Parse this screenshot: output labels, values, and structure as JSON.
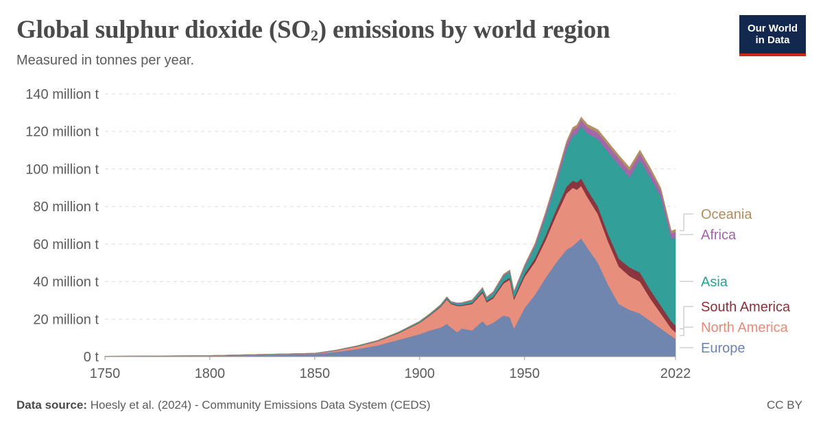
{
  "header": {
    "title_main": "Global sulphur dioxide (SO",
    "title_sub": "2",
    "title_tail": ") emissions by world region",
    "subtitle": "Measured in tonnes per year."
  },
  "logo": {
    "line1": "Our World",
    "line2": "in Data"
  },
  "footer": {
    "source_label": "Data source:",
    "source_text": " Hoesly et al. (2024) - Community Emissions Data System (CEDS)",
    "license": "CC BY"
  },
  "chart_data": {
    "type": "area",
    "stacked": true,
    "unit": "tonnes",
    "xlim": [
      1750,
      2022
    ],
    "ylim": [
      0,
      140000000
    ],
    "y_ticks": [
      {
        "value": 0,
        "label": "0 t"
      },
      {
        "value": 20000000,
        "label": "20 million t"
      },
      {
        "value": 40000000,
        "label": "40 million t"
      },
      {
        "value": 60000000,
        "label": "60 million t"
      },
      {
        "value": 80000000,
        "label": "80 million t"
      },
      {
        "value": 100000000,
        "label": "100 million t"
      },
      {
        "value": 120000000,
        "label": "120 million t"
      },
      {
        "value": 140000000,
        "label": "140 million t"
      }
    ],
    "x_ticks": [
      {
        "value": 1750,
        "label": "1750"
      },
      {
        "value": 1800,
        "label": "1800"
      },
      {
        "value": 1850,
        "label": "1850"
      },
      {
        "value": 1900,
        "label": "1900"
      },
      {
        "value": 1950,
        "label": "1950"
      },
      {
        "value": 2022,
        "label": "2022"
      }
    ],
    "grid": "horizontal dashed",
    "legend": "right, inline labels at series end",
    "years": [
      1750,
      1800,
      1850,
      1860,
      1870,
      1880,
      1890,
      1900,
      1905,
      1910,
      1913,
      1915,
      1918,
      1920,
      1925,
      1930,
      1932,
      1935,
      1940,
      1943,
      1945,
      1950,
      1955,
      1960,
      1965,
      1970,
      1973,
      1975,
      1977,
      1980,
      1985,
      1990,
      1995,
      2000,
      2005,
      2010,
      2015,
      2020,
      2022
    ],
    "series": [
      {
        "name": "Europe",
        "color": "#6d83ad",
        "values": [
          200000,
          400000,
          1500000,
          2500000,
          4000000,
          6000000,
          9000000,
          12000000,
          14000000,
          15500000,
          17500000,
          15500000,
          13000000,
          15000000,
          14000000,
          19000000,
          16500000,
          18000000,
          22000000,
          21000000,
          15000000,
          26000000,
          33000000,
          42000000,
          50000000,
          57000000,
          59000000,
          61000000,
          63000000,
          58000000,
          50000000,
          38000000,
          28000000,
          25000000,
          23000000,
          19000000,
          15000000,
          11000000,
          9500000
        ]
      },
      {
        "name": "North America",
        "color": "#e88b79",
        "values": [
          20000,
          100000,
          200000,
          700000,
          1400000,
          2200000,
          3500000,
          6000000,
          8000000,
          11000000,
          13000000,
          12500000,
          14000000,
          12000000,
          14000000,
          15000000,
          12500000,
          13000000,
          17000000,
          20000000,
          15500000,
          16500000,
          17500000,
          20000000,
          25000000,
          30000000,
          31000000,
          28000000,
          28000000,
          27000000,
          26000000,
          23000000,
          20000000,
          18000000,
          17000000,
          12000000,
          8000000,
          4000000,
          3500000
        ]
      },
      {
        "name": "South America",
        "color": "#883039",
        "values": [
          0,
          10000,
          20000,
          50000,
          80000,
          100000,
          150000,
          200000,
          250000,
          300000,
          350000,
          350000,
          400000,
          450000,
          600000,
          800000,
          700000,
          800000,
          1000000,
          1200000,
          1100000,
          1500000,
          2000000,
          2500000,
          3000000,
          3500000,
          3800000,
          3900000,
          4000000,
          4000000,
          4000000,
          4000000,
          4200000,
          4600000,
          4800000,
          4500000,
          4200000,
          3800000,
          3600000
        ]
      },
      {
        "name": "Asia",
        "color": "#2c9c95",
        "values": [
          50000,
          100000,
          150000,
          200000,
          250000,
          300000,
          400000,
          500000,
          600000,
          700000,
          800000,
          800000,
          900000,
          1000000,
          1200000,
          1500000,
          1500000,
          2000000,
          3000000,
          3000000,
          2500000,
          3500000,
          6000000,
          10000000,
          14000000,
          20000000,
          24000000,
          26000000,
          28000000,
          30000000,
          36000000,
          44000000,
          50000000,
          48000000,
          60000000,
          60000000,
          58000000,
          44000000,
          47000000
        ]
      },
      {
        "name": "Africa",
        "color": "#a164a8",
        "values": [
          0,
          0,
          10000,
          20000,
          40000,
          60000,
          80000,
          100000,
          120000,
          150000,
          180000,
          180000,
          200000,
          220000,
          300000,
          400000,
          400000,
          500000,
          600000,
          650000,
          600000,
          900000,
          1200000,
          1700000,
          2200000,
          2800000,
          3000000,
          3100000,
          3200000,
          3300000,
          3400000,
          3500000,
          3400000,
          3500000,
          3500000,
          3400000,
          3200000,
          2900000,
          2900000
        ]
      },
      {
        "name": "Oceania",
        "color": "#b18c5f",
        "values": [
          0,
          0,
          0,
          10000,
          20000,
          30000,
          50000,
          80000,
          100000,
          120000,
          130000,
          130000,
          140000,
          150000,
          200000,
          250000,
          250000,
          300000,
          400000,
          400000,
          400000,
          500000,
          700000,
          900000,
          1100000,
          1300000,
          1400000,
          1400000,
          1500000,
          1500000,
          1600000,
          1700000,
          1700000,
          1800000,
          1800000,
          1700000,
          1500000,
          1300000,
          1300000
        ]
      }
    ]
  }
}
